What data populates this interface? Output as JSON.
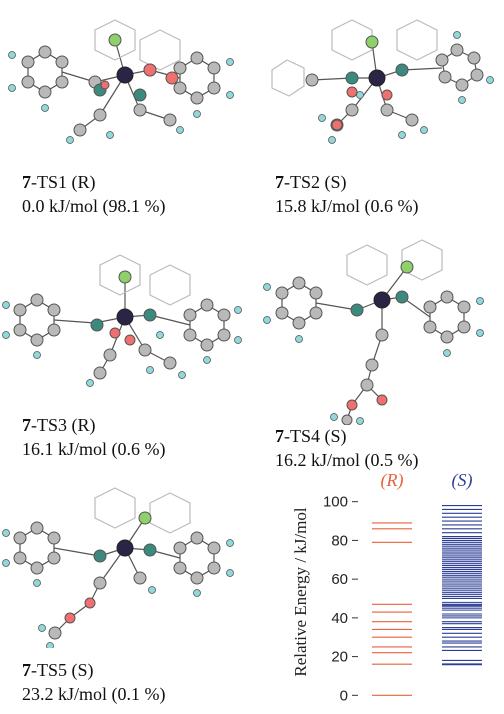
{
  "structures": [
    {
      "compound": "7",
      "label": "-TS1 (R)",
      "energy": "0.0 kJ/mol (98.1 %)"
    },
    {
      "compound": "7",
      "label": "-TS2 (S)",
      "energy": "15.8 kJ/mol (0.6 %)"
    },
    {
      "compound": "7",
      "label": "-TS3 (R)",
      "energy": "16.1 kJ/mol (0.6 %)"
    },
    {
      "compound": "7",
      "label": "-TS4 (S)",
      "energy": "16.2 kJ/mol (0.5 %)"
    },
    {
      "compound": "7",
      "label": "-TS5 (S)",
      "energy": "23.2 kJ/mol (0.1 %)"
    }
  ],
  "atom_colors": {
    "carbon": "#b9b9b9",
    "hydrogen": "#8fd8dc",
    "oxygen": "#f07070",
    "nitrogen": "#3c8a7e",
    "chlorine": "#8ed06a",
    "metal": "#2b2447"
  },
  "chart_data": {
    "type": "strip",
    "ylabel": "Relative Energy / kJ/mol",
    "ylim": [
      -5,
      105
    ],
    "yticks": [
      0,
      20,
      40,
      60,
      80,
      100
    ],
    "series": [
      {
        "name": "(R)",
        "color": "#e8603c",
        "values": [
          0,
          16.1,
          22,
          25,
          30,
          34,
          38,
          43,
          47,
          79,
          86,
          89
        ]
      },
      {
        "name": "(S)",
        "color": "#2c3e96",
        "values": [
          15.8,
          16.2,
          18,
          23.2,
          25,
          27,
          28,
          30,
          32,
          34,
          35,
          37,
          38,
          40,
          41,
          42,
          44,
          45,
          46,
          46.5,
          47,
          48,
          50,
          51,
          52,
          53,
          54,
          55,
          56,
          57,
          58,
          59,
          60,
          61,
          62,
          63,
          64,
          65,
          66,
          67,
          68,
          69,
          70,
          71,
          72,
          73,
          74,
          75,
          76,
          77,
          78,
          79,
          80,
          81,
          82,
          84,
          86,
          88,
          90,
          92,
          94,
          96,
          98
        ]
      }
    ]
  }
}
